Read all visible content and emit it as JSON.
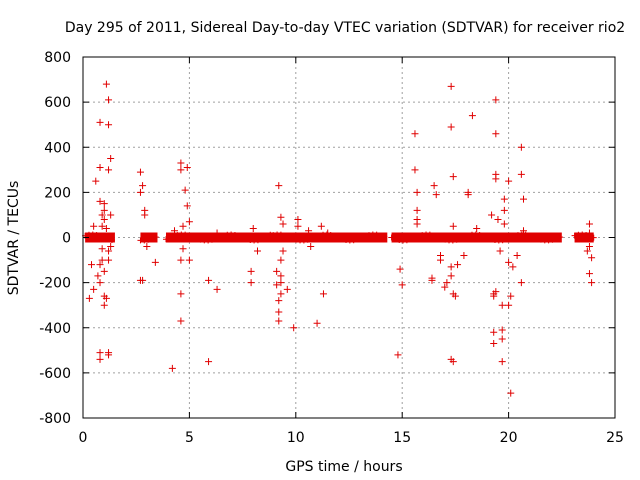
{
  "colors": {
    "series": "#e00000",
    "grid": "#a0a0a0",
    "axis": "#000000"
  },
  "chart_data": {
    "type": "scatter",
    "title": "Day 295 of 2011, Sidereal Day-to-day VTEC variation (SDTVAR) for receiver rio2",
    "xlabel": "GPS time / hours",
    "ylabel": "SDTVAR / TECUs",
    "xlim": [
      0,
      25
    ],
    "ylim": [
      -800,
      800
    ],
    "xticks": [
      0,
      5,
      10,
      15,
      20,
      25
    ],
    "yticks": [
      -800,
      -600,
      -400,
      -200,
      0,
      200,
      400,
      600,
      800
    ],
    "xtick_labels": [
      "0",
      "5",
      "10",
      "15",
      "20",
      "25"
    ],
    "ytick_labels": [
      "-800",
      "-600",
      "-400",
      "-200",
      "0",
      "200",
      "400",
      "600",
      "800"
    ],
    "grid": true,
    "marker": "+",
    "dense_band": {
      "y": 0,
      "segments": [
        [
          0.1,
          1.5
        ],
        [
          2.7,
          3.5
        ],
        [
          3.9,
          14.3
        ],
        [
          14.5,
          22.5
        ],
        [
          23.1,
          24.0
        ]
      ]
    },
    "series": [
      {
        "name": "SDTVAR",
        "points": [
          [
            0.3,
            -270
          ],
          [
            0.4,
            -120
          ],
          [
            0.5,
            -230
          ],
          [
            0.5,
            50
          ],
          [
            0.6,
            250
          ],
          [
            0.7,
            -170
          ],
          [
            0.8,
            -510
          ],
          [
            0.8,
            -540
          ],
          [
            0.8,
            510
          ],
          [
            0.8,
            310
          ],
          [
            0.8,
            160
          ],
          [
            0.8,
            -120
          ],
          [
            0.8,
            -200
          ],
          [
            0.9,
            100
          ],
          [
            0.9,
            -50
          ],
          [
            0.9,
            50
          ],
          [
            0.9,
            -100
          ],
          [
            1.0,
            150
          ],
          [
            1.0,
            120
          ],
          [
            1.0,
            -150
          ],
          [
            1.0,
            -260
          ],
          [
            1.0,
            -300
          ],
          [
            1.0,
            80
          ],
          [
            1.1,
            680
          ],
          [
            1.1,
            40
          ],
          [
            1.1,
            -270
          ],
          [
            1.2,
            610
          ],
          [
            1.2,
            500
          ],
          [
            1.2,
            -520
          ],
          [
            1.2,
            -510
          ],
          [
            1.2,
            300
          ],
          [
            1.2,
            -60
          ],
          [
            1.2,
            -100
          ],
          [
            1.3,
            350
          ],
          [
            1.3,
            100
          ],
          [
            1.3,
            -40
          ],
          [
            2.7,
            290
          ],
          [
            2.7,
            200
          ],
          [
            2.7,
            -190
          ],
          [
            2.8,
            230
          ],
          [
            2.8,
            -190
          ],
          [
            2.9,
            100
          ],
          [
            2.9,
            120
          ],
          [
            3.0,
            -40
          ],
          [
            3.4,
            -110
          ],
          [
            4.2,
            -580
          ],
          [
            4.3,
            30
          ],
          [
            4.6,
            330
          ],
          [
            4.6,
            300
          ],
          [
            4.6,
            -100
          ],
          [
            4.6,
            -250
          ],
          [
            4.6,
            -370
          ],
          [
            4.7,
            50
          ],
          [
            4.7,
            -50
          ],
          [
            4.8,
            210
          ],
          [
            4.9,
            310
          ],
          [
            4.9,
            140
          ],
          [
            5.0,
            -100
          ],
          [
            5.0,
            70
          ],
          [
            5.9,
            -550
          ],
          [
            5.9,
            -190
          ],
          [
            6.3,
            -230
          ],
          [
            6.3,
            20
          ],
          [
            7.9,
            -150
          ],
          [
            7.9,
            -200
          ],
          [
            8.0,
            40
          ],
          [
            8.2,
            -60
          ],
          [
            8.8,
            10
          ],
          [
            9.1,
            -150
          ],
          [
            9.1,
            -210
          ],
          [
            9.2,
            -280
          ],
          [
            9.2,
            -330
          ],
          [
            9.2,
            -370
          ],
          [
            9.2,
            230
          ],
          [
            9.3,
            -100
          ],
          [
            9.3,
            -170
          ],
          [
            9.3,
            -200
          ],
          [
            9.3,
            -250
          ],
          [
            9.3,
            90
          ],
          [
            9.4,
            60
          ],
          [
            9.4,
            -60
          ],
          [
            9.6,
            -230
          ],
          [
            9.9,
            -400
          ],
          [
            10.1,
            80
          ],
          [
            10.1,
            50
          ],
          [
            10.6,
            30
          ],
          [
            10.7,
            -40
          ],
          [
            11.0,
            -380
          ],
          [
            11.2,
            50
          ],
          [
            11.3,
            -250
          ],
          [
            11.5,
            20
          ],
          [
            14.8,
            -520
          ],
          [
            14.9,
            -140
          ],
          [
            15.0,
            -210
          ],
          [
            15.6,
            300
          ],
          [
            15.6,
            460
          ],
          [
            15.7,
            200
          ],
          [
            15.7,
            120
          ],
          [
            15.7,
            80
          ],
          [
            15.7,
            60
          ],
          [
            16.4,
            -190
          ],
          [
            16.4,
            -180
          ],
          [
            16.5,
            230
          ],
          [
            16.6,
            190
          ],
          [
            16.8,
            -80
          ],
          [
            16.8,
            -100
          ],
          [
            17.0,
            -220
          ],
          [
            17.1,
            -200
          ],
          [
            17.3,
            -130
          ],
          [
            17.3,
            -170
          ],
          [
            17.3,
            -540
          ],
          [
            17.3,
            670
          ],
          [
            17.3,
            490
          ],
          [
            17.4,
            270
          ],
          [
            17.4,
            -550
          ],
          [
            17.4,
            -250
          ],
          [
            17.4,
            50
          ],
          [
            17.5,
            -260
          ],
          [
            17.6,
            -120
          ],
          [
            17.9,
            -80
          ],
          [
            18.1,
            200
          ],
          [
            18.1,
            190
          ],
          [
            18.3,
            540
          ],
          [
            18.5,
            40
          ],
          [
            19.2,
            100
          ],
          [
            19.3,
            -420
          ],
          [
            19.3,
            -470
          ],
          [
            19.3,
            -250
          ],
          [
            19.3,
            -260
          ],
          [
            19.4,
            610
          ],
          [
            19.4,
            460
          ],
          [
            19.4,
            280
          ],
          [
            19.4,
            260
          ],
          [
            19.4,
            -240
          ],
          [
            19.5,
            80
          ],
          [
            19.6,
            -60
          ],
          [
            19.7,
            -550
          ],
          [
            19.7,
            -300
          ],
          [
            19.7,
            -410
          ],
          [
            19.7,
            -450
          ],
          [
            19.8,
            170
          ],
          [
            19.8,
            120
          ],
          [
            19.8,
            60
          ],
          [
            20.0,
            250
          ],
          [
            20.0,
            -300
          ],
          [
            20.0,
            -110
          ],
          [
            20.1,
            -260
          ],
          [
            20.1,
            -690
          ],
          [
            20.2,
            -130
          ],
          [
            20.4,
            -80
          ],
          [
            20.6,
            400
          ],
          [
            20.6,
            280
          ],
          [
            20.6,
            -200
          ],
          [
            20.7,
            170
          ],
          [
            20.7,
            30
          ],
          [
            23.7,
            -60
          ],
          [
            23.8,
            60
          ],
          [
            23.8,
            20
          ],
          [
            23.8,
            -40
          ],
          [
            23.8,
            -160
          ],
          [
            23.9,
            -90
          ],
          [
            23.9,
            -200
          ]
        ]
      }
    ]
  }
}
